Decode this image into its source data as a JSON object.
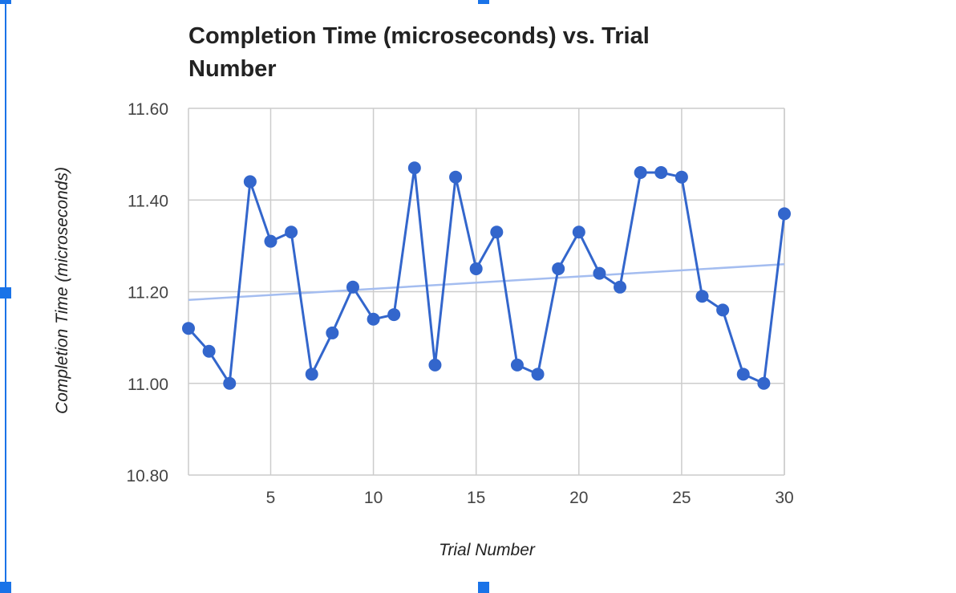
{
  "chart_data": {
    "type": "line",
    "title": "Completion Time (microseconds) vs. Trial Number",
    "title_lines": [
      "Completion Time (microseconds) vs. Trial",
      "Number"
    ],
    "xlabel": "Trial Number",
    "ylabel": "Completion Time (microseconds)",
    "x_ticks": [
      "5",
      "10",
      "15",
      "20",
      "25",
      "30"
    ],
    "y_ticks": [
      "10.80",
      "11.00",
      "11.20",
      "11.40",
      "11.60"
    ],
    "xlim": [
      1,
      30
    ],
    "ylim": [
      10.8,
      11.6
    ],
    "grid": true,
    "legend": "none",
    "series": [
      {
        "x": [
          1,
          2,
          3,
          4,
          5,
          6,
          7,
          8,
          9,
          10,
          11,
          12,
          13,
          14,
          15,
          16,
          17,
          18,
          19,
          20,
          21,
          22,
          23,
          24,
          25,
          26,
          27,
          28,
          29,
          30
        ],
        "values": [
          11.12,
          11.07,
          11.0,
          11.44,
          11.31,
          11.33,
          11.02,
          11.11,
          11.21,
          11.14,
          11.15,
          11.47,
          11.04,
          11.45,
          11.25,
          11.33,
          11.04,
          11.02,
          11.25,
          11.33,
          11.24,
          11.21,
          11.46,
          11.46,
          11.45,
          11.19,
          11.16,
          11.02,
          11.0,
          11.37
        ],
        "color": "#3366cc"
      }
    ],
    "trendline": {
      "type": "linear",
      "start": [
        1,
        11.182
      ],
      "end": [
        30,
        11.26
      ],
      "color": "#a4bdf0"
    }
  },
  "colors": {
    "series": "#3366cc",
    "trendline": "#a4bdf0",
    "grid": "#cccccc",
    "selection": "#1a73e8"
  }
}
